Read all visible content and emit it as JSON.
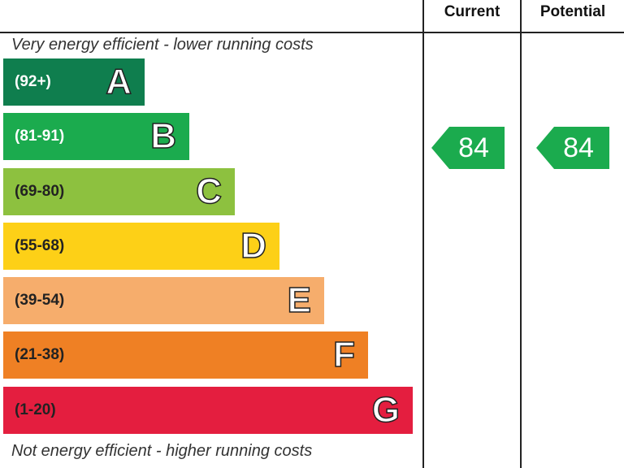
{
  "chart_data": {
    "type": "bar",
    "columns": [
      "Current",
      "Potential"
    ],
    "top_caption": "Very energy efficient - lower running costs",
    "bottom_caption": "Not energy efficient - higher running costs",
    "bands": [
      {
        "letter": "A",
        "range": "(92+)",
        "min": 92,
        "max": 100,
        "color": "#0f7e4e",
        "text_color": "#ffffff"
      },
      {
        "letter": "B",
        "range": "(81-91)",
        "min": 81,
        "max": 91,
        "color": "#1bab4e",
        "text_color": "#ffffff"
      },
      {
        "letter": "C",
        "range": "(69-80)",
        "min": 69,
        "max": 80,
        "color": "#8dc13f",
        "text_color": "#222222"
      },
      {
        "letter": "D",
        "range": "(55-68)",
        "min": 55,
        "max": 68,
        "color": "#fdd017",
        "text_color": "#222222"
      },
      {
        "letter": "E",
        "range": "(39-54)",
        "min": 39,
        "max": 54,
        "color": "#f6ad6c",
        "text_color": "#222222"
      },
      {
        "letter": "F",
        "range": "(21-38)",
        "min": 21,
        "max": 38,
        "color": "#ef8024",
        "text_color": "#222222"
      },
      {
        "letter": "G",
        "range": "(1-20)",
        "min": 1,
        "max": 20,
        "color": "#e41e3f",
        "text_color": "#222222"
      }
    ],
    "current": {
      "value": 84,
      "label": "84",
      "band": "B"
    },
    "potential": {
      "value": 84,
      "label": "84",
      "band": "B"
    }
  }
}
